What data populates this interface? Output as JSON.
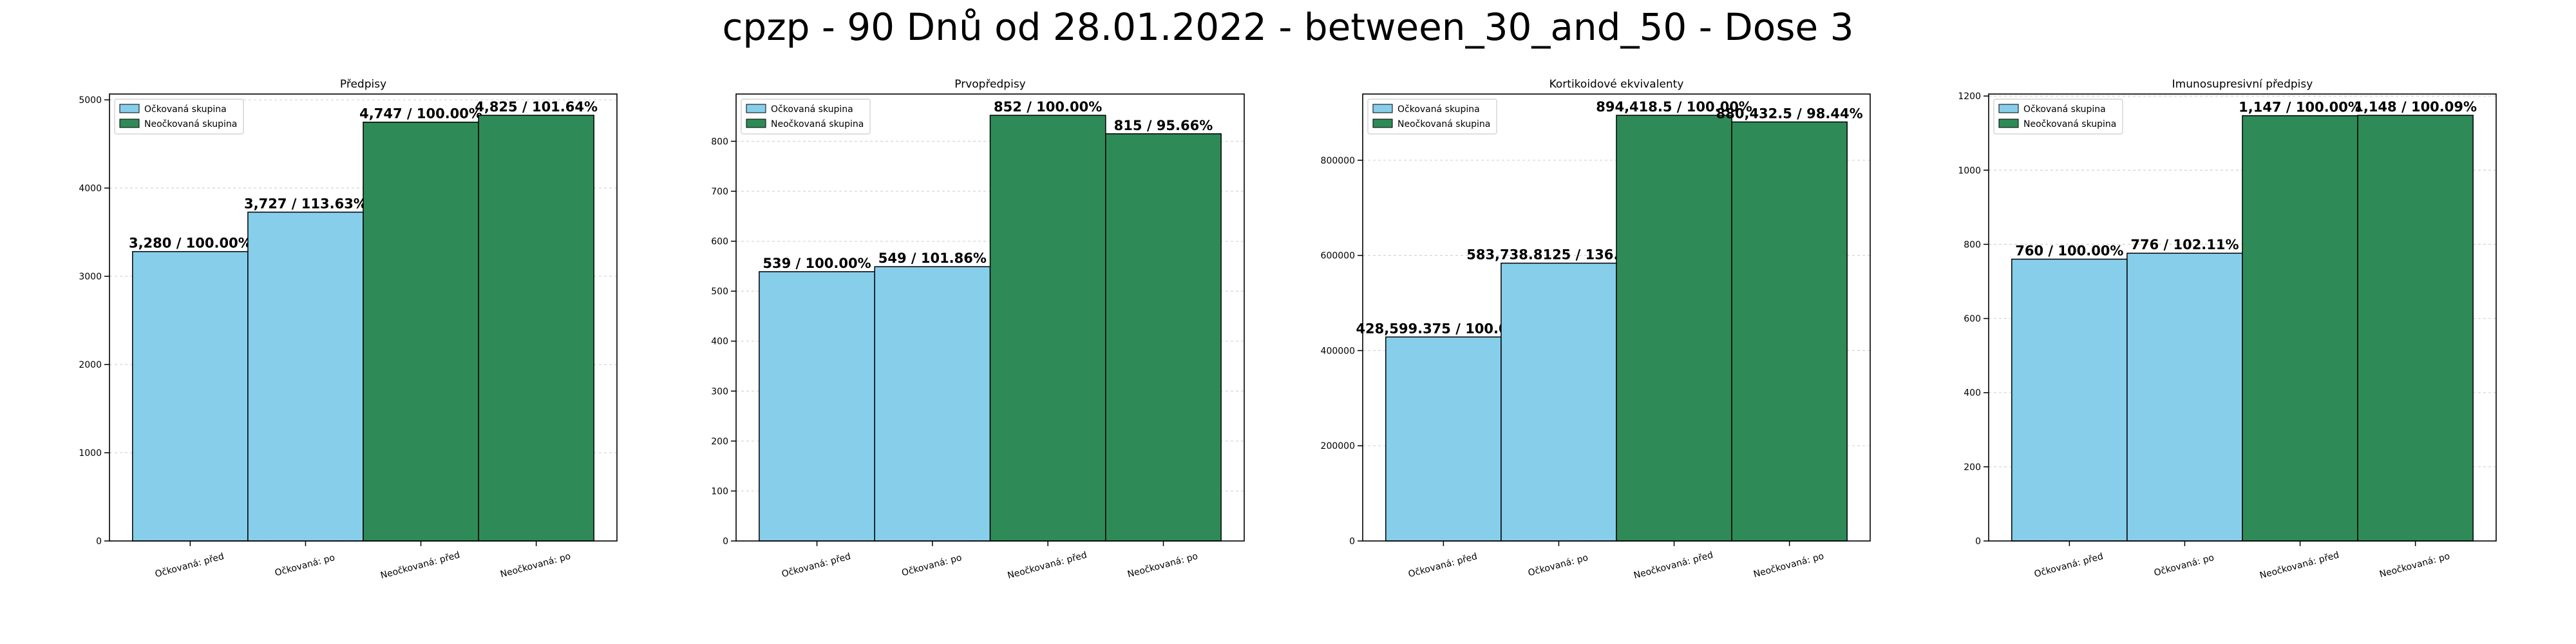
{
  "suptitle": "cpzp - 90 Dnů od 28.01.2022 - between_30_and_50 - Dose 3",
  "colors": {
    "vaccinated": "#87ceeb",
    "unvaccinated": "#2e8b57"
  },
  "chart_data": [
    {
      "type": "bar",
      "title": "Předpisy",
      "categories": [
        "Očkovaná: před",
        "Očkovaná: po",
        "Neočkovaná: před",
        "Neočkovaná: po"
      ],
      "values": [
        3280,
        3727,
        4747,
        4825
      ],
      "bar_labels": [
        "3,280 / 100.00%",
        "3,727 / 113.63%",
        "4,747 / 100.00%",
        "4,825 / 101.64%"
      ],
      "bar_groups": [
        "vaccinated",
        "vaccinated",
        "unvaccinated",
        "unvaccinated"
      ],
      "ylim": [
        0,
        5066
      ],
      "yticks": [
        0,
        1000,
        2000,
        3000,
        4000,
        5000
      ],
      "ytick_labels": [
        "0",
        "1000",
        "2000",
        "3000",
        "4000",
        "5000"
      ],
      "legend": [
        {
          "label": "Očkovaná skupina",
          "group": "vaccinated"
        },
        {
          "label": "Neočkovaná skupina",
          "group": "unvaccinated"
        }
      ],
      "legend_position": "upper-left",
      "grid": "y"
    },
    {
      "type": "bar",
      "title": "Prvopředpisy",
      "categories": [
        "Očkovaná: před",
        "Očkovaná: po",
        "Neočkovaná: před",
        "Neočkovaná: po"
      ],
      "values": [
        539,
        549,
        852,
        815
      ],
      "bar_labels": [
        "539 / 100.00%",
        "549 / 101.86%",
        "852 / 100.00%",
        "815 / 95.66%"
      ],
      "bar_groups": [
        "vaccinated",
        "vaccinated",
        "unvaccinated",
        "unvaccinated"
      ],
      "ylim": [
        0,
        894.6
      ],
      "yticks": [
        0,
        100,
        200,
        300,
        400,
        500,
        600,
        700,
        800
      ],
      "ytick_labels": [
        "0",
        "100",
        "200",
        "300",
        "400",
        "500",
        "600",
        "700",
        "800"
      ],
      "legend": [
        {
          "label": "Očkovaná skupina",
          "group": "vaccinated"
        },
        {
          "label": "Neočkovaná skupina",
          "group": "unvaccinated"
        }
      ],
      "legend_position": "upper-left",
      "grid": "y"
    },
    {
      "type": "bar",
      "title": "Kortikoidové ekvivalenty",
      "categories": [
        "Očkovaná: před",
        "Očkovaná: po",
        "Neočkovaná: před",
        "Neočkovaná: po"
      ],
      "values": [
        428599.375,
        583738.8125,
        894418.5,
        880432.5
      ],
      "bar_labels": [
        "428,599.375 / 100.00%",
        "583,738.8125 / 136.20%",
        "894,418.5 / 100.00%",
        "880,432.5 / 98.44%"
      ],
      "bar_groups": [
        "vaccinated",
        "vaccinated",
        "unvaccinated",
        "unvaccinated"
      ],
      "ylim": [
        0,
        939139
      ],
      "yticks": [
        0,
        200000,
        400000,
        600000,
        800000
      ],
      "ytick_labels": [
        "0",
        "200000",
        "400000",
        "600000",
        "800000"
      ],
      "legend": [
        {
          "label": "Očkovaná skupina",
          "group": "vaccinated"
        },
        {
          "label": "Neočkovaná skupina",
          "group": "unvaccinated"
        }
      ],
      "legend_position": "upper-left",
      "grid": "y"
    },
    {
      "type": "bar",
      "title": "Imunosupresivní předpisy",
      "categories": [
        "Očkovaná: před",
        "Očkovaná: po",
        "Neočkovaná: před",
        "Neočkovaná: po"
      ],
      "values": [
        760,
        776,
        1147,
        1148
      ],
      "bar_labels": [
        "760 / 100.00%",
        "776 / 102.11%",
        "1,147 / 100.00%",
        "1,148 / 100.09%"
      ],
      "bar_groups": [
        "vaccinated",
        "vaccinated",
        "unvaccinated",
        "unvaccinated"
      ],
      "ylim": [
        0,
        1205.4
      ],
      "yticks": [
        0,
        200,
        400,
        600,
        800,
        1000,
        1200
      ],
      "ytick_labels": [
        "0",
        "200",
        "400",
        "600",
        "800",
        "1000",
        "1200"
      ],
      "legend": [
        {
          "label": "Očkovaná skupina",
          "group": "vaccinated"
        },
        {
          "label": "Neočkovaná skupina",
          "group": "unvaccinated"
        }
      ],
      "legend_position": "upper-left",
      "grid": "y"
    }
  ]
}
